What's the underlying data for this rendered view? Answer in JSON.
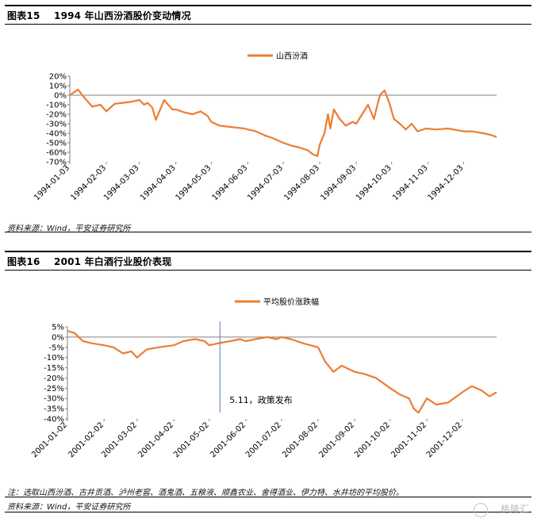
{
  "figure15": {
    "label": "图表15",
    "title": "1994 年山西汾酒股价变动情况",
    "source": "资料来源：Wind，平安证券研究所"
  },
  "figure16": {
    "label": "图表16",
    "title": "2001 年白酒行业股价表现",
    "note": "注：选取山西汾酒、古井贡酒、泸州老窖、酒鬼酒、五粮液、顺鑫农业、舍得酒业、伊力特、水井坊的平均股价。",
    "source": "资料来源：Wind，平安证券研究所"
  },
  "watermark": "格隆汇",
  "colors": {
    "line": "#ED7D31",
    "marker": "#5B7FA6",
    "axis": "#7F7F7F",
    "text": "#000000"
  },
  "chart_data": [
    {
      "type": "line",
      "title": "",
      "legend": "top-center",
      "series": [
        {
          "name": "山西汾酒",
          "x": [
            "1994-01-03",
            "1994-01-10",
            "1994-01-15",
            "1994-01-22",
            "1994-01-29",
            "1994-02-03",
            "1994-02-10",
            "1994-02-17",
            "1994-02-24",
            "1994-03-03",
            "1994-03-07",
            "1994-03-10",
            "1994-03-14",
            "1994-03-17",
            "1994-03-24",
            "1994-03-31",
            "1994-04-03",
            "1994-04-10",
            "1994-04-17",
            "1994-04-24",
            "1994-04-30",
            "1994-05-03",
            "1994-05-10",
            "1994-05-17",
            "1994-05-24",
            "1994-05-31",
            "1994-06-03",
            "1994-06-10",
            "1994-06-17",
            "1994-06-24",
            "1994-07-03",
            "1994-07-10",
            "1994-07-17",
            "1994-07-24",
            "1994-07-28",
            "1994-08-01",
            "1994-08-03",
            "1994-08-07",
            "1994-08-10",
            "1994-08-12",
            "1994-08-15",
            "1994-08-20",
            "1994-08-25",
            "1994-08-31",
            "1994-09-03",
            "1994-09-08",
            "1994-09-13",
            "1994-09-18",
            "1994-09-23",
            "1994-09-27",
            "1994-10-01",
            "1994-10-05",
            "1994-10-10",
            "1994-10-15",
            "1994-10-20",
            "1994-10-25",
            "1994-11-01",
            "1994-11-10",
            "1994-11-20",
            "1994-12-03",
            "1994-12-10",
            "1994-12-20",
            "1994-12-27",
            "1994-12-31"
          ],
          "values": [
            0,
            6,
            -2,
            -12,
            -10,
            -17,
            -9,
            -8,
            -7,
            -5,
            -10,
            -8,
            -13,
            -26,
            -5,
            -15,
            -15,
            -18,
            -20,
            -17,
            -22,
            -28,
            -32,
            -33,
            -34,
            -35,
            -36,
            -38,
            -42,
            -45,
            -50,
            -53,
            -55,
            -58,
            -62,
            -64,
            -52,
            -40,
            -20,
            -35,
            -15,
            -25,
            -32,
            -28,
            -30,
            -20,
            -10,
            -25,
            0,
            5,
            -8,
            -25,
            -30,
            -36,
            -30,
            -38,
            -35,
            -36,
            -35,
            -38,
            -38,
            -40,
            -42,
            -44
          ]
        }
      ],
      "categories": [
        "1994-01-03",
        "1994-02-03",
        "1994-03-03",
        "1994-04-03",
        "1994-05-03",
        "1994-06-03",
        "1994-07-03",
        "1994-08-03",
        "1994-09-03",
        "1994-10-03",
        "1994-11-03",
        "1994-12-03"
      ],
      "yticks": [
        "20%",
        "10%",
        "0%",
        "-10%",
        "-20%",
        "-30%",
        "-40%",
        "-50%",
        "-60%",
        "-70%"
      ],
      "ylim": [
        -70,
        20
      ],
      "xlabel": "",
      "ylabel": ""
    },
    {
      "type": "line",
      "title": "",
      "legend": "top-center",
      "series": [
        {
          "name": "平均股价涨跌幅",
          "x": [
            "2001-01-02",
            "2001-01-08",
            "2001-01-15",
            "2001-01-22",
            "2001-02-02",
            "2001-02-10",
            "2001-02-18",
            "2001-02-25",
            "2001-03-02",
            "2001-03-10",
            "2001-03-20",
            "2001-04-02",
            "2001-04-10",
            "2001-04-20",
            "2001-04-28",
            "2001-05-02",
            "2001-05-10",
            "2001-05-20",
            "2001-05-28",
            "2001-06-02",
            "2001-06-10",
            "2001-06-20",
            "2001-06-28",
            "2001-07-02",
            "2001-07-10",
            "2001-07-20",
            "2001-08-02",
            "2001-08-08",
            "2001-08-15",
            "2001-08-22",
            "2001-09-02",
            "2001-09-10",
            "2001-09-20",
            "2001-10-02",
            "2001-10-10",
            "2001-10-18",
            "2001-10-22",
            "2001-10-26",
            "2001-11-02",
            "2001-11-10",
            "2001-11-20",
            "2001-12-02",
            "2001-12-10",
            "2001-12-18",
            "2001-12-25",
            "2001-12-31"
          ],
          "values": [
            3,
            2,
            -2,
            -3,
            -4,
            -5,
            -8,
            -7,
            -10,
            -6,
            -5,
            -4,
            -2,
            -1,
            -2,
            -4,
            -3,
            -2,
            -1,
            -2,
            -1,
            0,
            -1,
            0,
            -1,
            -3,
            -5,
            -12,
            -17,
            -14,
            -17,
            -18,
            -20,
            -25,
            -28,
            -30,
            -35,
            -37,
            -30,
            -33,
            -32,
            -27,
            -24,
            -26,
            -29,
            -27
          ]
        }
      ],
      "categories": [
        "2001-01-02",
        "2001-02-02",
        "2001-03-02",
        "2001-04-02",
        "2001-05-02",
        "2001-06-02",
        "2001-07-02",
        "2001-08-02",
        "2001-09-02",
        "2001-10-02",
        "2001-11-02",
        "2001-12-02"
      ],
      "yticks": [
        "5%",
        "0%",
        "-5%",
        "-10%",
        "-15%",
        "-20%",
        "-25%",
        "-30%",
        "-35%",
        "-40%"
      ],
      "ylim": [
        -40,
        5
      ],
      "annotation": "5.11，政策发布",
      "xlabel": "",
      "ylabel": ""
    }
  ]
}
